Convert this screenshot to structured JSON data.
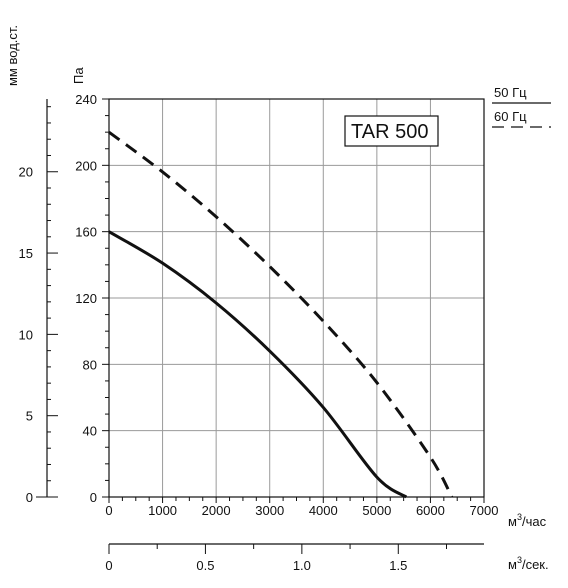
{
  "chart_data": {
    "type": "line",
    "model_label": "TAR 500",
    "left_axis_label": "мм вод.ст.",
    "pa_axis_label": "Па",
    "flow_axis_label": "м³/час",
    "flow_axis_label_base": "м",
    "flow_axis_label_sup": "3",
    "flow_axis_label_tail": "/час",
    "sec_axis_label_base": "м",
    "sec_axis_label_sup": "3",
    "sec_axis_label_tail": "/сек.",
    "xlim": [
      0,
      7000
    ],
    "ylim": [
      0,
      240
    ],
    "x_ticks": [
      "0",
      "1000",
      "2000",
      "3000",
      "4000",
      "5000",
      "6000",
      "7000"
    ],
    "pa_ticks": [
      "0",
      "40",
      "80",
      "120",
      "160",
      "200",
      "240"
    ],
    "mm_ticks": [
      "0",
      "5",
      "10",
      "15",
      "20"
    ],
    "sec_ticks": [
      "0",
      "0.5",
      "1.0",
      "1.5"
    ],
    "legend": {
      "position": "top-right",
      "items": [
        {
          "label": "50 Гц",
          "style": "solid"
        },
        {
          "label": "60 Гц",
          "style": "dashed"
        }
      ]
    },
    "grid": true,
    "series": [
      {
        "name": "50 Гц",
        "style": "solid",
        "x": [
          0,
          1000,
          2000,
          3000,
          4000,
          5000,
          5550
        ],
        "y": [
          160,
          141,
          117,
          88,
          54,
          12,
          0
        ]
      },
      {
        "name": "60 Гц",
        "style": "dashed",
        "x": [
          0,
          1000,
          2000,
          3000,
          4000,
          5000,
          6000,
          6400
        ],
        "y": [
          220,
          196,
          169,
          139,
          106,
          69,
          24,
          0
        ]
      }
    ]
  },
  "colors": {
    "line": "#111111",
    "grid": "#9a9a9a",
    "background": "#ffffff"
  }
}
